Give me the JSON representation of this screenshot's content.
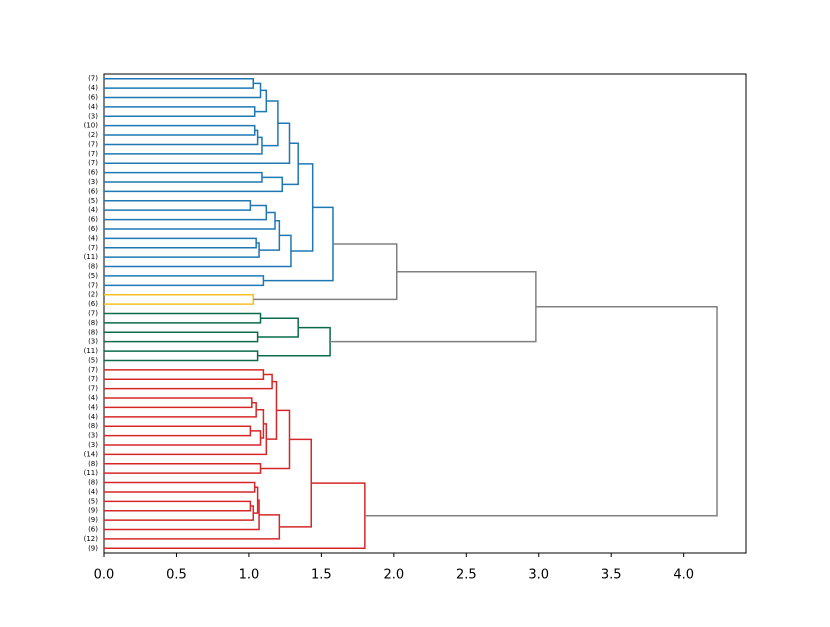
{
  "chart_data": {
    "type": "dendrogram",
    "leaves": [
      "(7)",
      "(4)",
      "(6)",
      "(4)",
      "(3)",
      "(10)",
      "(2)",
      "(7)",
      "(7)",
      "(7)",
      "(6)",
      "(3)",
      "(6)",
      "(5)",
      "(4)",
      "(6)",
      "(6)",
      "(4)",
      "(7)",
      "(11)",
      "(8)",
      "(5)",
      "(7)",
      "(2)",
      "(6)",
      "(7)",
      "(8)",
      "(8)",
      "(3)",
      "(11)",
      "(5)",
      "(7)",
      "(7)",
      "(7)",
      "(4)",
      "(4)",
      "(4)",
      "(8)",
      "(3)",
      "(3)",
      "(14)",
      "(8)",
      "(11)",
      "(8)",
      "(4)",
      "(5)",
      "(9)",
      "(9)",
      "(6)",
      "(12)",
      "(9)"
    ],
    "links": [
      {
        "left": 0,
        "right": 1,
        "height": 1.03,
        "color": "#1f77b4"
      },
      {
        "left": 51,
        "right": 2,
        "height": 1.08,
        "color": "#1f77b4"
      },
      {
        "left": 3,
        "right": 4,
        "height": 1.04,
        "color": "#1f77b4"
      },
      {
        "left": 52,
        "right": 53,
        "height": 1.12,
        "color": "#1f77b4"
      },
      {
        "left": 5,
        "right": 6,
        "height": 1.04,
        "color": "#1f77b4"
      },
      {
        "left": 55,
        "right": 7,
        "height": 1.06,
        "color": "#1f77b4"
      },
      {
        "left": 56,
        "right": 8,
        "height": 1.09,
        "color": "#1f77b4"
      },
      {
        "left": 54,
        "right": 57,
        "height": 1.2,
        "color": "#1f77b4"
      },
      {
        "left": 58,
        "right": 9,
        "height": 1.28,
        "color": "#1f77b4"
      },
      {
        "left": 10,
        "right": 11,
        "height": 1.09,
        "color": "#1f77b4"
      },
      {
        "left": 60,
        "right": 12,
        "height": 1.23,
        "color": "#1f77b4"
      },
      {
        "left": 59,
        "right": 61,
        "height": 1.34,
        "color": "#1f77b4"
      },
      {
        "left": 13,
        "right": 14,
        "height": 1.01,
        "color": "#1f77b4"
      },
      {
        "left": 63,
        "right": 15,
        "height": 1.12,
        "color": "#1f77b4"
      },
      {
        "left": 64,
        "right": 16,
        "height": 1.18,
        "color": "#1f77b4"
      },
      {
        "left": 17,
        "right": 18,
        "height": 1.05,
        "color": "#1f77b4"
      },
      {
        "left": 66,
        "right": 19,
        "height": 1.07,
        "color": "#1f77b4"
      },
      {
        "left": 65,
        "right": 67,
        "height": 1.21,
        "color": "#1f77b4"
      },
      {
        "left": 68,
        "right": 20,
        "height": 1.29,
        "color": "#1f77b4"
      },
      {
        "left": 62,
        "right": 69,
        "height": 1.44,
        "color": "#1f77b4"
      },
      {
        "left": 21,
        "right": 22,
        "height": 1.1,
        "color": "#1f77b4"
      },
      {
        "left": 70,
        "right": 71,
        "height": 1.58,
        "color": "#1f77b4"
      },
      {
        "left": 23,
        "right": 24,
        "height": 1.03,
        "color": "#f5c124"
      },
      {
        "left": 72,
        "right": 73,
        "height": 2.02,
        "color": "#808080"
      },
      {
        "left": 25,
        "right": 26,
        "height": 1.08,
        "color": "#0a6b4b"
      },
      {
        "left": 27,
        "right": 28,
        "height": 1.06,
        "color": "#0a6b4b"
      },
      {
        "left": 75,
        "right": 76,
        "height": 1.34,
        "color": "#0a6b4b"
      },
      {
        "left": 29,
        "right": 30,
        "height": 1.06,
        "color": "#0a6b4b"
      },
      {
        "left": 77,
        "right": 78,
        "height": 1.56,
        "color": "#0a6b4b"
      },
      {
        "left": 74,
        "right": 79,
        "height": 2.98,
        "color": "#808080"
      },
      {
        "left": 31,
        "right": 32,
        "height": 1.1,
        "color": "#d62728"
      },
      {
        "left": 81,
        "right": 33,
        "height": 1.16,
        "color": "#d62728"
      },
      {
        "left": 34,
        "right": 35,
        "height": 1.02,
        "color": "#d62728"
      },
      {
        "left": 83,
        "right": 36,
        "height": 1.05,
        "color": "#d62728"
      },
      {
        "left": 37,
        "right": 38,
        "height": 1.01,
        "color": "#d62728"
      },
      {
        "left": 85,
        "right": 39,
        "height": 1.08,
        "color": "#d62728"
      },
      {
        "left": 84,
        "right": 86,
        "height": 1.1,
        "color": "#d62728"
      },
      {
        "left": 87,
        "right": 40,
        "height": 1.12,
        "color": "#d62728"
      },
      {
        "left": 82,
        "right": 88,
        "height": 1.19,
        "color": "#d62728"
      },
      {
        "left": 41,
        "right": 42,
        "height": 1.08,
        "color": "#d62728"
      },
      {
        "left": 89,
        "right": 90,
        "height": 1.28,
        "color": "#d62728"
      },
      {
        "left": 43,
        "right": 44,
        "height": 1.04,
        "color": "#d62728"
      },
      {
        "left": 45,
        "right": 46,
        "height": 1.01,
        "color": "#d62728"
      },
      {
        "left": 93,
        "right": 47,
        "height": 1.03,
        "color": "#d62728"
      },
      {
        "left": 92,
        "right": 94,
        "height": 1.06,
        "color": "#d62728"
      },
      {
        "left": 95,
        "right": 48,
        "height": 1.07,
        "color": "#d62728"
      },
      {
        "left": 96,
        "right": 49,
        "height": 1.21,
        "color": "#d62728"
      },
      {
        "left": 91,
        "right": 97,
        "height": 1.43,
        "color": "#d62728"
      },
      {
        "left": 98,
        "right": 50,
        "height": 1.8,
        "color": "#d62728"
      },
      {
        "left": 80,
        "right": 99,
        "height": 4.23,
        "color": "#808080"
      }
    ],
    "xlim": [
      0,
      4.43
    ],
    "xticks": [
      {
        "value": 0,
        "label": "0.0"
      },
      {
        "value": 0.5,
        "label": "0.5"
      },
      {
        "value": 1,
        "label": "1.0"
      },
      {
        "value": 1.5,
        "label": "1.5"
      },
      {
        "value": 2,
        "label": "2.0"
      },
      {
        "value": 2.5,
        "label": "2.5"
      },
      {
        "value": 3,
        "label": "3.0"
      },
      {
        "value": 3.5,
        "label": "3.5"
      },
      {
        "value": 4,
        "label": "4.0"
      }
    ]
  }
}
